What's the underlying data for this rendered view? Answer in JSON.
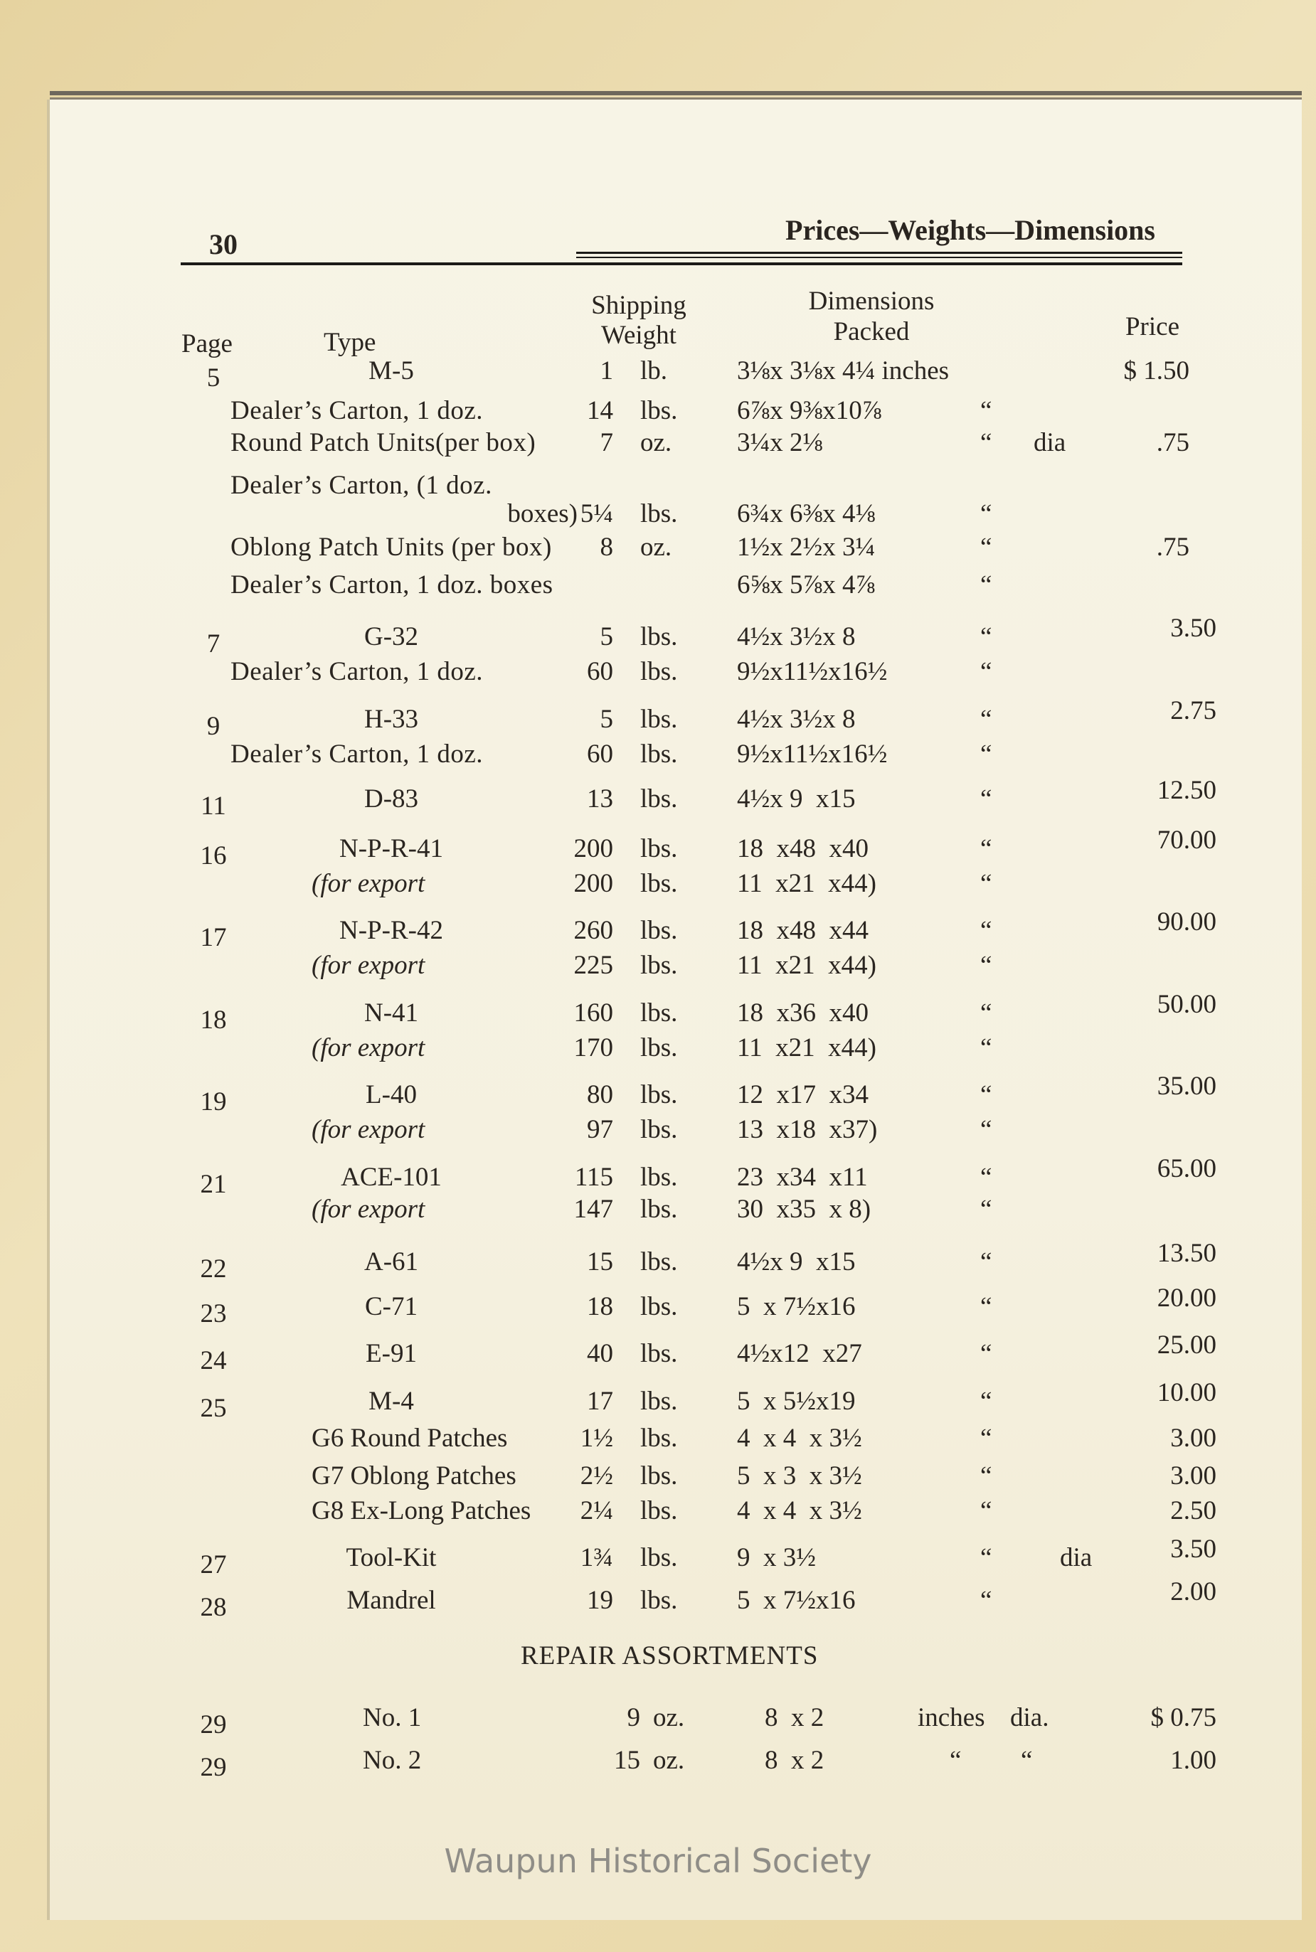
{
  "header": {
    "page_number": "30",
    "running_title": "Prices—Weights—Dimensions"
  },
  "columns": {
    "page": "Page",
    "type": "Type",
    "weight_1": "Shipping",
    "weight_2": "Weight",
    "dims_1": "Dimensions",
    "dims_2": "Packed",
    "price": "Price"
  },
  "rows": [
    {
      "kind": "item",
      "page": "5",
      "type": "M-5",
      "wt": "1",
      "unit": "lb.",
      "dims": "3⅛x 3⅛x 4¼ inches",
      "ditto": "",
      "dia": "",
      "price": "$ 1.50"
    },
    {
      "kind": "sub",
      "page": "",
      "type": "Dealer’s Carton, 1 doz.",
      "wt": "14",
      "unit": "lbs.",
      "dims": "6⅞x 9⅜x10⅞",
      "ditto": "“",
      "dia": "",
      "price": ""
    },
    {
      "kind": "sub",
      "page": "",
      "type": "Round Patch Units(per box)",
      "wt": "7",
      "unit": "oz.",
      "dims": "3¼x 2⅛",
      "ditto": "“",
      "dia": "dia",
      "price": ".75"
    },
    {
      "kind": "sub",
      "page": "",
      "type": "Dealer’s Carton, (1 doz.",
      "wt": "",
      "unit": "",
      "dims": "",
      "ditto": "",
      "dia": "",
      "price": ""
    },
    {
      "kind": "cont",
      "page": "",
      "type": "boxes)",
      "wt": "5¼",
      "unit": "lbs.",
      "dims": "6¾x 6⅜x 4⅛",
      "ditto": "“",
      "dia": "",
      "price": ""
    },
    {
      "kind": "sub",
      "page": "",
      "type": "Oblong Patch Units (per box)",
      "wt": "8",
      "unit": "oz.",
      "dims": "1½x 2½x 3¼",
      "ditto": "“",
      "dia": "",
      "price": ".75"
    },
    {
      "kind": "sub",
      "page": "",
      "type": "Dealer’s Carton, 1 doz. boxes",
      "wt": "",
      "unit": "",
      "dims": "6⅝x 5⅞x 4⅞",
      "ditto": "“",
      "dia": "",
      "price": ""
    },
    {
      "kind": "item",
      "page": "7",
      "type": "G-32",
      "wt": "5",
      "unit": "lbs.",
      "dims": "4½x 3½x 8",
      "ditto": "“",
      "dia": "",
      "price": "3.50"
    },
    {
      "kind": "sub",
      "page": "",
      "type": "Dealer’s Carton, 1 doz.",
      "wt": "60",
      "unit": "lbs.",
      "dims": "9½x11½x16½",
      "ditto": "“",
      "dia": "",
      "price": ""
    },
    {
      "kind": "item",
      "page": "9",
      "type": "H-33",
      "wt": "5",
      "unit": "lbs.",
      "dims": "4½x 3½x 8",
      "ditto": "“",
      "dia": "",
      "price": "2.75"
    },
    {
      "kind": "sub",
      "page": "",
      "type": "Dealer’s Carton, 1 doz.",
      "wt": "60",
      "unit": "lbs.",
      "dims": "9½x11½x16½",
      "ditto": "“",
      "dia": "",
      "price": ""
    },
    {
      "kind": "item",
      "page": "11",
      "type": "D-83",
      "wt": "13",
      "unit": "lbs.",
      "dims": "4½x 9  x15",
      "ditto": "“",
      "dia": "",
      "price": "12.50"
    },
    {
      "kind": "item",
      "page": "16",
      "type": "N-P-R-41",
      "wt": "200",
      "unit": "lbs.",
      "dims": "18  x48  x40",
      "ditto": "“",
      "dia": "",
      "price": "70.00"
    },
    {
      "kind": "export",
      "page": "",
      "type": "(for export",
      "wt": "200",
      "unit": "lbs.",
      "dims": "11  x21  x44)",
      "ditto": "“",
      "dia": "",
      "price": ""
    },
    {
      "kind": "item",
      "page": "17",
      "type": "N-P-R-42",
      "wt": "260",
      "unit": "lbs.",
      "dims": "18  x48  x44",
      "ditto": "“",
      "dia": "",
      "price": "90.00"
    },
    {
      "kind": "export",
      "page": "",
      "type": "(for export",
      "wt": "225",
      "unit": "lbs.",
      "dims": "11  x21  x44)",
      "ditto": "“",
      "dia": "",
      "price": ""
    },
    {
      "kind": "item",
      "page": "18",
      "type": "N-41",
      "wt": "160",
      "unit": "lbs.",
      "dims": "18  x36  x40",
      "ditto": "“",
      "dia": "",
      "price": "50.00"
    },
    {
      "kind": "export",
      "page": "",
      "type": "(for export",
      "wt": "170",
      "unit": "lbs.",
      "dims": "11  x21  x44)",
      "ditto": "“",
      "dia": "",
      "price": ""
    },
    {
      "kind": "item",
      "page": "19",
      "type": "L-40",
      "wt": "80",
      "unit": "lbs.",
      "dims": "12  x17  x34",
      "ditto": "“",
      "dia": "",
      "price": "35.00"
    },
    {
      "kind": "export",
      "page": "",
      "type": "(for export",
      "wt": "97",
      "unit": "lbs.",
      "dims": "13  x18  x37)",
      "ditto": "“",
      "dia": "",
      "price": ""
    },
    {
      "kind": "item",
      "page": "21",
      "type": "ACE-101",
      "wt": "115",
      "unit": "lbs.",
      "dims": "23  x34  x11",
      "ditto": "“",
      "dia": "",
      "price": "65.00"
    },
    {
      "kind": "export",
      "page": "",
      "type": "(for export",
      "wt": "147",
      "unit": "lbs.",
      "dims": "30  x35  x 8)",
      "ditto": "“",
      "dia": "",
      "price": ""
    },
    {
      "kind": "item",
      "page": "22",
      "type": "A-61",
      "wt": "15",
      "unit": "lbs.",
      "dims": "4½x 9  x15",
      "ditto": "“",
      "dia": "",
      "price": "13.50"
    },
    {
      "kind": "item",
      "page": "23",
      "type": "C-71",
      "wt": "18",
      "unit": "lbs.",
      "dims": "5  x 7½x16",
      "ditto": "“",
      "dia": "",
      "price": "20.00"
    },
    {
      "kind": "item",
      "page": "24",
      "type": "E-91",
      "wt": "40",
      "unit": "lbs.",
      "dims": "4½x12  x27",
      "ditto": "“",
      "dia": "",
      "price": "25.00"
    },
    {
      "kind": "item",
      "page": "25",
      "type": "M-4",
      "wt": "17",
      "unit": "lbs.",
      "dims": "5  x 5½x19",
      "ditto": "“",
      "dia": "",
      "price": "10.00"
    },
    {
      "kind": "patch",
      "page": "",
      "type": "G6 Round Patches",
      "wt": "1½",
      "unit": "lbs.",
      "dims": "4  x 4  x 3½",
      "ditto": "“",
      "dia": "",
      "price": "3.00"
    },
    {
      "kind": "patch",
      "page": "",
      "type": "G7 Oblong Patches",
      "wt": "2½",
      "unit": "lbs.",
      "dims": "5  x 3  x 3½",
      "ditto": "“",
      "dia": "",
      "price": "3.00"
    },
    {
      "kind": "patch",
      "page": "",
      "type": "G8 Ex-Long Patches",
      "wt": "2¼",
      "unit": "lbs.",
      "dims": "4  x 4  x 3½",
      "ditto": "“",
      "dia": "",
      "price": "2.50"
    },
    {
      "kind": "item",
      "page": "27",
      "type": "Tool-Kit",
      "wt": "1¾",
      "unit": "lbs.",
      "dims": "9  x 3½",
      "ditto": "“",
      "dia": "dia",
      "price": "3.50"
    },
    {
      "kind": "item",
      "page": "28",
      "type": "Mandrel",
      "wt": "19",
      "unit": "lbs.",
      "dims": "5  x 7½x16",
      "ditto": "“",
      "dia": "",
      "price": "2.00"
    }
  ],
  "repair": {
    "title": "REPAIR ASSORTMENTS",
    "rows": [
      {
        "page": "29",
        "type": "No. 1",
        "wt": "9",
        "unit": "oz.",
        "dims": "8  x 2",
        "ditto": "inches",
        "dia": "dia.",
        "price": "$ 0.75"
      },
      {
        "page": "29",
        "type": "No. 2",
        "wt": "15",
        "unit": "oz.",
        "dims": "8  x 2",
        "ditto": "“",
        "dia": "“",
        "price": "1.00"
      }
    ]
  },
  "watermark": "Waupun Historical Society"
}
